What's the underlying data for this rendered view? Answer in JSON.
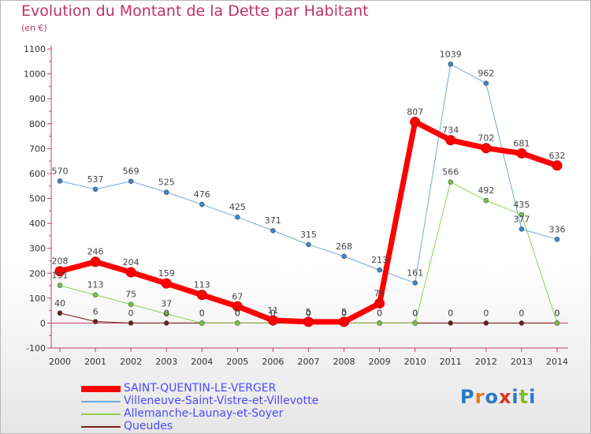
{
  "title": "Evolution du Montant de la Dette par Habitant",
  "subtitle": "(en €)",
  "logo": {
    "text": "Proxiti",
    "colors": [
      "#2a78c9",
      "#e8761b",
      "#2a78c9",
      "#e0301e",
      "#2a78c9",
      "#7cbd2a",
      "#2a78c9"
    ]
  },
  "chart_data": {
    "type": "line",
    "x": [
      "2000",
      "2001",
      "2002",
      "2003",
      "2004",
      "2005",
      "2006",
      "2007",
      "2008",
      "2009",
      "2010",
      "2011",
      "2012",
      "2013",
      "2014"
    ],
    "ylim": [
      -100,
      1100
    ],
    "yticks": [
      "-100",
      "0",
      "100",
      "200",
      "300",
      "400",
      "500",
      "600",
      "700",
      "800",
      "900",
      "1000",
      "1100"
    ],
    "grid": false,
    "legend_position": "bottom-left",
    "series": [
      {
        "name": "SAINT-QUENTIN-LE-VERGER",
        "color": "#ff0000",
        "width": 7,
        "values": [
          208,
          246,
          204,
          159,
          113,
          67,
          11,
          5,
          5,
          79,
          807,
          734,
          702,
          681,
          632
        ],
        "labels": [
          "208",
          "246",
          "204",
          "159",
          "113",
          "67",
          "11",
          "5",
          "5",
          "79",
          "807",
          "734",
          "702",
          "681",
          "632"
        ]
      },
      {
        "name": "Villeneuve-Saint-Vistre-et-Villevotte",
        "color": "#6fa8dc",
        "width": 1,
        "values": [
          570,
          537,
          569,
          525,
          476,
          425,
          371,
          315,
          268,
          213,
          161,
          1039,
          962,
          377,
          336
        ],
        "labels": [
          "570",
          "537",
          "569",
          "525",
          "476",
          "425",
          "371",
          "315",
          "268",
          "213",
          "161",
          "1039",
          "962",
          "377",
          "336"
        ]
      },
      {
        "name": "Allemanche-Launay-et-Soyer",
        "color": "#8fd14f",
        "width": 1,
        "values": [
          151,
          113,
          75,
          37,
          0,
          0,
          0,
          0,
          0,
          0,
          0,
          566,
          492,
          435,
          0
        ],
        "labels": [
          "151",
          "113",
          "75",
          "37",
          "0",
          "0",
          "0",
          "0",
          "0",
          "0",
          "0",
          "566",
          "492",
          "435",
          "0"
        ]
      },
      {
        "name": "Queudes",
        "color": "#7b1e1e",
        "width": 1,
        "values": [
          40,
          6,
          0,
          0,
          0,
          0,
          0,
          0,
          0,
          0,
          0,
          0,
          0,
          0,
          0
        ],
        "labels": [
          "40",
          "6",
          "0",
          "0",
          "0",
          "0",
          "0",
          "0",
          "0",
          "0",
          "0",
          "0",
          "0",
          "0",
          "0"
        ]
      }
    ]
  }
}
